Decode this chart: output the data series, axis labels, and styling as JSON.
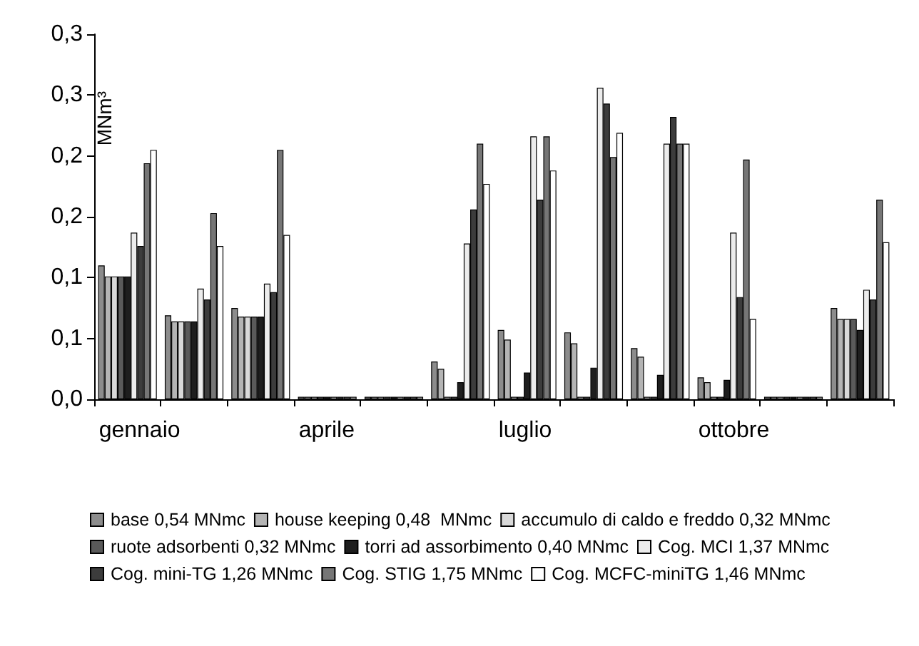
{
  "chart_data": {
    "type": "bar",
    "ylabel": "MNm³",
    "categories": [
      "gennaio",
      null,
      null,
      "aprile",
      null,
      null,
      "luglio",
      null,
      null,
      "ottobre",
      null,
      null
    ],
    "series": [
      {
        "name": "base 0,54 MNmc",
        "color": "#8c8c8c",
        "values": [
          0.11,
          0.069,
          0.075,
          0.002,
          0.002,
          0.031,
          0.057,
          0.055,
          0.042,
          0.018,
          0.002,
          0.075
        ]
      },
      {
        "name": "house keeping 0,48  MNmc",
        "color": "#b4b4b4",
        "values": [
          0.101,
          0.064,
          0.068,
          0.002,
          0.002,
          0.025,
          0.049,
          0.046,
          0.035,
          0.014,
          0.002,
          0.066
        ]
      },
      {
        "name": "accumulo di caldo e freddo 0,32 MNmc",
        "color": "#d9d9d9",
        "values": [
          0.101,
          0.064,
          0.068,
          0.002,
          0.002,
          0.002,
          0.002,
          0.002,
          0.002,
          0.002,
          0.002,
          0.066
        ]
      },
      {
        "name": "ruote adsorbenti 0,32 MNmc",
        "color": "#5a5a5a",
        "values": [
          0.101,
          0.064,
          0.068,
          0.002,
          0.002,
          0.002,
          0.002,
          0.002,
          0.002,
          0.002,
          0.002,
          0.066
        ]
      },
      {
        "name": "torri ad assorbimento 0,40 MNmc",
        "color": "#1e1e1e",
        "values": [
          0.101,
          0.064,
          0.068,
          0.002,
          0.002,
          0.014,
          0.022,
          0.026,
          0.02,
          0.016,
          0.002,
          0.057
        ]
      },
      {
        "name": "Cog. MCI 1,37 MNmc",
        "color": "#ececec",
        "values": [
          0.137,
          0.091,
          0.095,
          0.002,
          0.002,
          0.128,
          0.216,
          0.256,
          0.21,
          0.137,
          0.002,
          0.09
        ]
      },
      {
        "name": "Cog. mini-TG 1,26 MNmc",
        "color": "#3c3c3c",
        "values": [
          0.126,
          0.082,
          0.088,
          0.002,
          0.002,
          0.156,
          0.164,
          0.243,
          0.232,
          0.084,
          0.002,
          0.082
        ]
      },
      {
        "name": "Cog. STIG 1,75 MNmc",
        "color": "#767676",
        "values": [
          0.194,
          0.153,
          0.205,
          0.002,
          0.002,
          0.21,
          0.216,
          0.199,
          0.21,
          0.197,
          0.002,
          0.164
        ]
      },
      {
        "name": "Cog. MCFC-miniTG 1,46 MNmc",
        "color": "#ffffff",
        "values": [
          0.205,
          0.126,
          0.135,
          0.002,
          0.002,
          0.177,
          0.188,
          0.219,
          0.21,
          0.066,
          0.002,
          0.129
        ]
      }
    ],
    "ylim": [
      0,
      0.3
    ],
    "yticks": [
      {
        "value": 0,
        "label": "0,0"
      },
      {
        "value": 0.05,
        "label": "0,1"
      },
      {
        "value": 0.1,
        "label": "0,1"
      },
      {
        "value": 0.15,
        "label": "0,2"
      },
      {
        "value": 0.2,
        "label": "0,2"
      },
      {
        "value": 0.25,
        "label": "0,3"
      },
      {
        "value": 0.3,
        "label": "0,3"
      }
    ],
    "grid": false,
    "legend": "bottom"
  }
}
